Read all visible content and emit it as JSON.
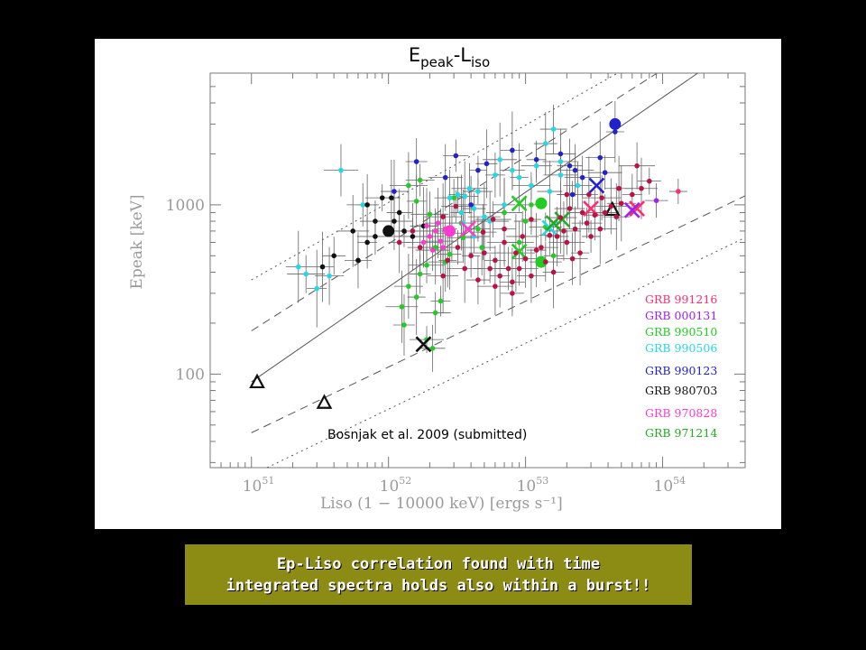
{
  "chart_data": {
    "type": "scatter",
    "title": "E",
    "title_sub1": "peak",
    "title_mid": "-L",
    "title_sub2": "iso",
    "xlabel": "Liso (1 − 10000 keV) [ergs s⁻¹]",
    "ylabel": "Epeak [keV]",
    "xscale": "log",
    "yscale": "log",
    "xlim": [
      5e+50,
      4e+54
    ],
    "ylim": [
      28,
      6000
    ],
    "x_ticks": [
      {
        "value": 1e+51,
        "base": "10",
        "exp": "51"
      },
      {
        "value": 1e+52,
        "base": "10",
        "exp": "52"
      },
      {
        "value": 1e+53,
        "base": "10",
        "exp": "53"
      },
      {
        "value": 1e+54,
        "base": "10",
        "exp": "54"
      }
    ],
    "y_ticks": [
      {
        "value": 100,
        "label": "100"
      },
      {
        "value": 1000,
        "label": "1000"
      }
    ],
    "annotation": "Bosnjak et al. 2009 (submitted)",
    "legend_position": "right",
    "correlation_lines": [
      {
        "style": "solid",
        "points": [
          [
            1e+51,
            90
          ],
          [
            2.5e+54,
            7200
          ]
        ]
      },
      {
        "style": "dashed",
        "points": [
          [
            1e+51,
            180
          ],
          [
            1.3e+54,
            7200
          ]
        ]
      },
      {
        "style": "dashed",
        "points": [
          [
            1e+51,
            45
          ],
          [
            4e+54,
            1130
          ]
        ]
      },
      {
        "style": "dotted",
        "points": [
          [
            1e+51,
            360
          ],
          [
            7e+53,
            7200
          ]
        ]
      },
      {
        "style": "dotted",
        "points": [
          [
            1.3e+51,
            28
          ],
          [
            4e+54,
            640
          ]
        ]
      }
    ],
    "series": [
      {
        "name": "GRB 991216",
        "color": "#ff2d6e",
        "points": [
          [
            1.3e+54,
            1200
          ]
        ],
        "crosses": [
          [
            3e+53,
            950
          ],
          [
            6.5e+53,
            950
          ]
        ]
      },
      {
        "name": "GRB 000131",
        "color": "#a020f0",
        "points": [
          [
            9e+53,
            1060
          ]
        ],
        "crosses": [
          [
            6e+53,
            930
          ]
        ]
      },
      {
        "name": "GRB 990510",
        "color": "#22cc22",
        "points": [
          [
            9e+52,
            600
          ],
          [
            1.6e+53,
            500
          ],
          [
            1.4e+53,
            740
          ],
          [
            1e+53,
            800
          ],
          [
            7e+52,
            900
          ],
          [
            3.4e+52,
            780
          ],
          [
            1.1e+53,
            1000
          ],
          [
            2.2e+52,
            560
          ],
          [
            1.7e+52,
            390
          ],
          [
            2.6e+52,
            460
          ],
          [
            4.5e+52,
            720
          ],
          [
            2e+52,
            880
          ],
          [
            1.4e+52,
            330
          ],
          [
            2.4e+52,
            270
          ],
          [
            3.5e+52,
            640
          ],
          [
            2.8e+52,
            510
          ],
          [
            1.9e+52,
            440
          ],
          [
            4.8e+52,
            560
          ],
          [
            1.6e+52,
            285
          ],
          [
            2.2e+52,
            230
          ],
          [
            1.3e+52,
            195
          ],
          [
            1.9e+52,
            160
          ],
          [
            2.1e+52,
            142
          ],
          [
            1.4e+52,
            1300
          ],
          [
            1.7e+52,
            1400
          ],
          [
            1.6e+52,
            1050
          ],
          [
            1.25e+52,
            250
          ],
          [
            3e+52,
            1100
          ]
        ],
        "big_points": [
          [
            1.3e+53,
            1020
          ],
          [
            1.3e+53,
            460
          ]
        ],
        "crosses": [
          [
            9e+52,
            530
          ],
          [
            9e+52,
            1020
          ]
        ]
      },
      {
        "name": "GRB 990506",
        "color": "#22d8e8",
        "points": [
          [
            4.5e+51,
            1600
          ],
          [
            2.2e+51,
            430
          ],
          [
            2.5e+51,
            390
          ],
          [
            3.7e+51,
            380
          ],
          [
            3e+51,
            320
          ],
          [
            6.5e+51,
            1000
          ],
          [
            1.4e+53,
            2300
          ],
          [
            1.8e+53,
            1800
          ],
          [
            1.6e+53,
            2800
          ],
          [
            9e+52,
            1450
          ],
          [
            1.2e+53,
            1700
          ],
          [
            7e+52,
            1000
          ],
          [
            6.5e+52,
            1850
          ],
          [
            8e+52,
            1600
          ],
          [
            5.5e+52,
            800
          ],
          [
            4.5e+52,
            1200
          ],
          [
            6e+52,
            1500
          ],
          [
            5e+52,
            850
          ],
          [
            4.2e+52,
            950
          ],
          [
            3.9e+52,
            1250
          ],
          [
            3.6e+52,
            1120
          ],
          [
            3.2e+52,
            1150
          ],
          [
            2.8e+52,
            1100
          ],
          [
            3.4e+52,
            900
          ],
          [
            1.8e+53,
            1500
          ],
          [
            1.5e+53,
            1200
          ],
          [
            1.1e+53,
            1300
          ],
          [
            2.4e+53,
            1300
          ],
          [
            3.5e+52,
            780
          ],
          [
            4.2e+52,
            650
          ]
        ],
        "crosses": [
          [
            1.5e+53,
            730
          ]
        ]
      },
      {
        "name": "GRB 990123",
        "color": "#2222cc",
        "points": [
          [
            4.5e+53,
            2700
          ],
          [
            2.2e+53,
            1150
          ],
          [
            1.6e+52,
            1800
          ],
          [
            2.6e+52,
            1450
          ],
          [
            3.1e+52,
            1950
          ],
          [
            2.3e+53,
            1600
          ],
          [
            3.5e+53,
            1900
          ],
          [
            1.2e+53,
            1850
          ],
          [
            4e+52,
            1000
          ],
          [
            8e+52,
            2100
          ],
          [
            2.6e+53,
            1450
          ],
          [
            1.1e+52,
            1200
          ],
          [
            4.5e+52,
            1600
          ],
          [
            1.8e+53,
            2000
          ],
          [
            5.2e+52,
            1750
          ],
          [
            3.8e+53,
            1550
          ],
          [
            2.1e+53,
            1700
          ]
        ],
        "big_points": [
          [
            4.5e+53,
            3000
          ]
        ],
        "crosses": [
          [
            3.3e+53,
            1300
          ]
        ]
      },
      {
        "name": "GRB 980703",
        "color": "#111111",
        "points": [
          [
            3.3e+51,
            430
          ],
          [
            8e+51,
            650
          ],
          [
            6e+51,
            470
          ],
          [
            1.05e+52,
            1100
          ],
          [
            8e+51,
            800
          ],
          [
            7e+51,
            1000
          ],
          [
            9e+51,
            1100
          ],
          [
            1.2e+52,
            900
          ],
          [
            1.5e+52,
            650
          ],
          [
            1.3e+52,
            700
          ],
          [
            7e+51,
            600
          ],
          [
            5.5e+51,
            700
          ],
          [
            4e+51,
            500
          ],
          [
            1.1e+52,
            800
          ],
          [
            1.8e+52,
            750
          ]
        ],
        "big_points": [
          [
            1e+52,
            700
          ]
        ],
        "crosses": [
          [
            1.8e+52,
            150
          ]
        ],
        "triangles": [
          [
            1.1e+51,
            90
          ],
          [
            3.4e+51,
            68
          ],
          [
            4.3e+53,
            940
          ]
        ]
      },
      {
        "name": "GRB 970828",
        "color": "#ff3ad0",
        "points": [
          [
            2e+52,
            650
          ],
          [
            2.2e+52,
            700
          ],
          [
            2.4e+52,
            610
          ],
          [
            2.6e+52,
            720
          ],
          [
            1.8e+52,
            600
          ],
          [
            2.3e+52,
            780
          ],
          [
            2.5e+52,
            560
          ],
          [
            2.9e+52,
            680
          ],
          [
            1.9e+52,
            750
          ],
          [
            2.1e+52,
            540
          ]
        ],
        "big_points": [
          [
            2.8e+52,
            700
          ]
        ],
        "crosses": [
          [
            3.8e+52,
            720
          ]
        ]
      },
      {
        "name": "GRB 971214",
        "color": "#22aa22",
        "points": [],
        "crosses": [
          [
            1.6e+53,
            780
          ],
          [
            1.85e+53,
            820
          ]
        ]
      },
      {
        "name": "",
        "color": "#bb1144",
        "points": [
          [
            4e+52,
            500
          ],
          [
            5e+52,
            520
          ],
          [
            6e+52,
            470
          ],
          [
            7e+52,
            600
          ],
          [
            8e+52,
            350
          ],
          [
            9e+52,
            420
          ],
          [
            1.1e+53,
            380
          ],
          [
            1.2e+53,
            540
          ],
          [
            1.4e+53,
            460
          ],
          [
            1.7e+53,
            650
          ],
          [
            2e+53,
            600
          ],
          [
            2.3e+53,
            720
          ],
          [
            2.5e+53,
            520
          ],
          [
            2.8e+53,
            780
          ],
          [
            3.2e+53,
            870
          ],
          [
            3.5e+53,
            720
          ],
          [
            3.8e+53,
            900
          ],
          [
            4.2e+53,
            980
          ],
          [
            5e+53,
            1020
          ],
          [
            6e+53,
            1150
          ],
          [
            7e+53,
            1250
          ],
          [
            8e+53,
            1380
          ],
          [
            6.5e+53,
            1700
          ],
          [
            4.6e+53,
            850
          ],
          [
            3e+53,
            650
          ],
          [
            2.2e+53,
            480
          ],
          [
            1.6e+53,
            400
          ],
          [
            1.3e+53,
            560
          ],
          [
            1e+53,
            480
          ],
          [
            8.5e+52,
            520
          ],
          [
            7.5e+52,
            420
          ],
          [
            6.5e+52,
            380
          ],
          [
            5.5e+52,
            420
          ],
          [
            4.5e+52,
            360
          ],
          [
            3.6e+52,
            420
          ],
          [
            3.2e+52,
            560
          ],
          [
            2.7e+52,
            470
          ],
          [
            2.5e+52,
            380
          ],
          [
            1.5e+53,
            660
          ],
          [
            1.9e+53,
            700
          ],
          [
            2.6e+53,
            900
          ],
          [
            3.6e+53,
            1100
          ],
          [
            4.8e+53,
            1250
          ],
          [
            1.1e+53,
            820
          ],
          [
            9.5e+52,
            650
          ],
          [
            7e+52,
            720
          ],
          [
            5.8e+52,
            820
          ],
          [
            4.9e+52,
            690
          ],
          [
            2.9e+53,
            1150
          ],
          [
            2.1e+53,
            950
          ],
          [
            1.2e+52,
            600
          ],
          [
            1.5e+52,
            700
          ],
          [
            1.7e+52,
            560
          ],
          [
            2.5e+52,
            850
          ],
          [
            3.1e+52,
            980
          ],
          [
            2e+53,
            1150
          ],
          [
            1.8e+53,
            840
          ],
          [
            8e+52,
            300
          ],
          [
            6e+52,
            330
          ]
        ]
      }
    ]
  },
  "caption": {
    "line1": "Ep-Liso correlation found with time",
    "line2": "integrated spectra holds also within a burst!!"
  }
}
